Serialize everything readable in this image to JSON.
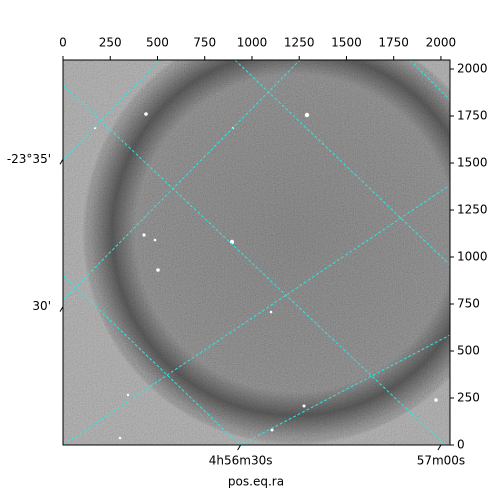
{
  "chart_data": {
    "type": "image",
    "xlabel": "pos.eq.ra",
    "xlim": [
      0,
      2048
    ],
    "ylim": [
      0,
      2048
    ],
    "xticks": [
      0,
      250,
      500,
      750,
      1000,
      1250,
      1500,
      1750,
      2000
    ],
    "yticks": [
      0,
      250,
      500,
      750,
      1000,
      1250,
      1500,
      1750,
      2000
    ],
    "ra_ticks": [
      {
        "value": 940,
        "label": "4h56m30s"
      },
      {
        "value": 2000,
        "label": "57m00s"
      }
    ],
    "dec_ticks": [
      {
        "value": 1520,
        "label": "-23°35'"
      },
      {
        "value": 736,
        "label": "30'"
      }
    ]
  }
}
